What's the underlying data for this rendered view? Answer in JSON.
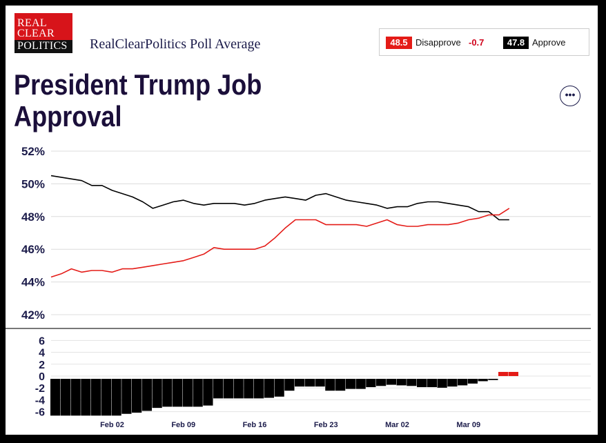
{
  "logo": {
    "line1": "REAL",
    "line2": "CLEAR",
    "line3": "POLITICS"
  },
  "subtitle": "RealClearPolitics Poll Average",
  "legend": {
    "disapprove_value": "48.5",
    "disapprove_label": "Disapprove",
    "disapprove_change": "-0.7",
    "approve_value": "47.8",
    "approve_label": "Approve"
  },
  "title": "President Trump Job Approval",
  "more_icon": "more-options-icon",
  "colors": {
    "approve": "#000000",
    "disapprove": "#e41b17",
    "grid": "#dddddd"
  },
  "chart_data": [
    {
      "type": "line",
      "title": "President Trump Job Approval",
      "ylim": [
        41,
        52.5
      ],
      "yticks": [
        "52%",
        "50%",
        "48%",
        "46%",
        "44%",
        "42%"
      ],
      "ytick_values": [
        52,
        50,
        48,
        46,
        44,
        42
      ],
      "xticks": [
        "Feb 02",
        "Feb 09",
        "Feb 16",
        "Feb 23",
        "Mar 02",
        "Mar 09"
      ],
      "xtick_days": [
        6,
        13,
        20,
        27,
        34,
        41
      ],
      "grid": true,
      "x_days": [
        0,
        1,
        2,
        3,
        4,
        5,
        6,
        7,
        8,
        9,
        10,
        11,
        12,
        13,
        14,
        15,
        16,
        17,
        18,
        19,
        20,
        21,
        22,
        23,
        24,
        25,
        26,
        27,
        28,
        29,
        30,
        31,
        32,
        33,
        34,
        35,
        36,
        37,
        38,
        39,
        40,
        41,
        42,
        43,
        44,
        45
      ],
      "series": [
        {
          "name": "Approve",
          "color": "#000000",
          "values": [
            50.5,
            50.4,
            50.3,
            50.2,
            49.9,
            49.9,
            49.6,
            49.4,
            49.2,
            48.9,
            48.5,
            48.7,
            48.9,
            49.0,
            48.8,
            48.7,
            48.8,
            48.8,
            48.8,
            48.7,
            48.8,
            49.0,
            49.1,
            49.2,
            49.1,
            49.0,
            49.3,
            49.4,
            49.2,
            49.0,
            48.9,
            48.8,
            48.7,
            48.5,
            48.6,
            48.6,
            48.8,
            48.9,
            48.9,
            48.8,
            48.7,
            48.6,
            48.3,
            48.3,
            47.8,
            47.8
          ]
        },
        {
          "name": "Disapprove",
          "color": "#e41b17",
          "values": [
            44.3,
            44.5,
            44.8,
            44.6,
            44.7,
            44.7,
            44.6,
            44.8,
            44.8,
            44.9,
            45.0,
            45.1,
            45.2,
            45.3,
            45.5,
            45.7,
            46.1,
            46.0,
            46.0,
            46.0,
            46.0,
            46.2,
            46.7,
            47.3,
            47.8,
            47.8,
            47.8,
            47.5,
            47.5,
            47.5,
            47.5,
            47.4,
            47.6,
            47.8,
            47.5,
            47.4,
            47.4,
            47.5,
            47.5,
            47.5,
            47.6,
            47.8,
            47.9,
            48.1,
            48.1,
            48.5
          ]
        }
      ]
    },
    {
      "type": "bar",
      "title": "",
      "ylim": [
        -6.5,
        7
      ],
      "yticks": [
        "6",
        "4",
        "2",
        "0",
        "-2",
        "-4",
        "-6"
      ],
      "ytick_values": [
        6,
        4,
        2,
        0,
        -2,
        -4,
        -6
      ],
      "x_days": [
        0,
        1,
        2,
        3,
        4,
        5,
        6,
        7,
        8,
        9,
        10,
        11,
        12,
        13,
        14,
        15,
        16,
        17,
        18,
        19,
        20,
        21,
        22,
        23,
        24,
        25,
        26,
        27,
        28,
        29,
        30,
        31,
        32,
        33,
        34,
        35,
        36,
        37,
        38,
        39,
        40,
        41,
        42,
        43,
        44,
        45
      ],
      "series": [
        {
          "name": "Spread",
          "values": [
            -6.2,
            -6.2,
            -6.2,
            -6.2,
            -6.2,
            -6.2,
            -6.2,
            -5.9,
            -5.7,
            -5.4,
            -4.9,
            -4.7,
            -4.7,
            -4.7,
            -4.7,
            -4.5,
            -3.3,
            -3.3,
            -3.3,
            -3.3,
            -3.3,
            -3.2,
            -3.0,
            -2.0,
            -1.3,
            -1.3,
            -1.3,
            -2.0,
            -2.0,
            -1.7,
            -1.7,
            -1.4,
            -1.2,
            -1.0,
            -1.1,
            -1.2,
            -1.4,
            -1.4,
            -1.5,
            -1.3,
            -1.1,
            -0.8,
            -0.4,
            -0.2,
            0.7,
            0.7
          ]
        }
      ]
    }
  ]
}
